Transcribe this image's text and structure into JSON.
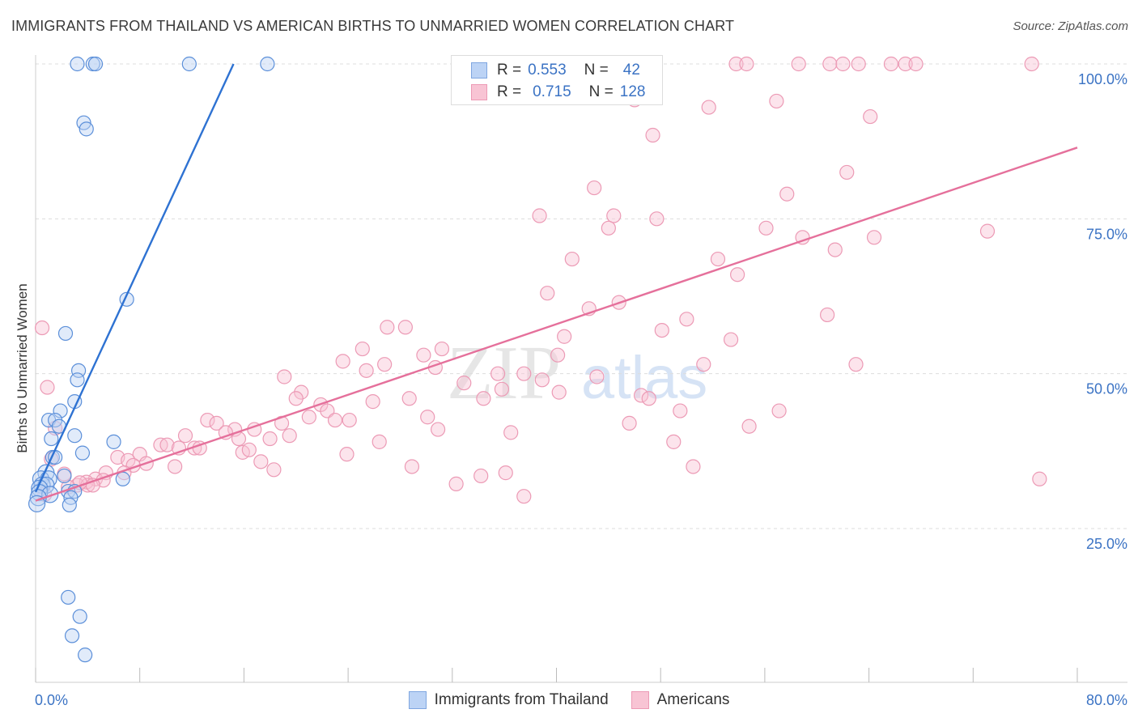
{
  "title": "IMMIGRANTS FROM THAILAND VS AMERICAN BIRTHS TO UNMARRIED WOMEN CORRELATION CHART",
  "source": "Source: ZipAtlas.com",
  "watermark": {
    "zip": "ZIP",
    "atlas": "atlas"
  },
  "legend": {
    "r_label": "R =",
    "n_label": "N =",
    "rows": [
      {
        "r": "0.553",
        "n": "42",
        "fill": "#bcd3f5",
        "stroke": "#7fa6e0"
      },
      {
        "r": "0.715",
        "n": "128",
        "fill": "#f8c4d4",
        "stroke": "#ec9ab5"
      }
    ]
  },
  "chart_data": {
    "type": "scatter",
    "title": "IMMIGRANTS FROM THAILAND VS AMERICAN BIRTHS TO UNMARRIED WOMEN CORRELATION CHART",
    "xlabel": "",
    "ylabel": "Births to Unmarried Women",
    "xlim": [
      0,
      80
    ],
    "ylim": [
      0,
      100
    ],
    "x_tick_labels": [
      {
        "value": 0,
        "label": "0.0%"
      },
      {
        "value": 80,
        "label": "80.0%"
      }
    ],
    "y_tick_labels": [
      {
        "value": 25,
        "label": "25.0%"
      },
      {
        "value": 50,
        "label": "50.0%"
      },
      {
        "value": 75,
        "label": "75.0%"
      },
      {
        "value": 100,
        "label": "100.0%"
      }
    ],
    "y_gridlines": [
      25,
      50,
      75,
      100
    ],
    "legend_position": "top-center",
    "series": [
      {
        "name": "Immigrants from Thailand",
        "color": "#5b8fd9",
        "fill": "#bcd3f5",
        "line_color": "#2e72d2",
        "trend": [
          [
            0.0,
            30.9
          ],
          [
            15.2,
            100.0
          ]
        ],
        "points": [
          [
            3.2,
            100
          ],
          [
            4.4,
            100
          ],
          [
            4.6,
            100
          ],
          [
            11.8,
            100
          ],
          [
            17.8,
            100
          ],
          [
            3.7,
            90.5
          ],
          [
            3.9,
            89.5
          ],
          [
            7.0,
            62.0
          ],
          [
            2.3,
            56.5
          ],
          [
            3.3,
            50.5
          ],
          [
            3.2,
            49.0
          ],
          [
            3.0,
            45.5
          ],
          [
            1.9,
            44.0
          ],
          [
            1.0,
            42.5
          ],
          [
            1.5,
            42.5
          ],
          [
            1.8,
            41.5
          ],
          [
            3.0,
            40.0
          ],
          [
            1.2,
            39.5
          ],
          [
            6.0,
            39.0
          ],
          [
            1.3,
            36.5
          ],
          [
            3.6,
            37.2
          ],
          [
            1.5,
            36.5
          ],
          [
            0.8,
            34.0
          ],
          [
            2.2,
            33.5
          ],
          [
            0.4,
            33.0
          ],
          [
            1.0,
            33.0
          ],
          [
            6.7,
            33.0
          ],
          [
            0.5,
            32.0
          ],
          [
            0.8,
            32.0
          ],
          [
            0.3,
            31.5
          ],
          [
            2.5,
            31.0
          ],
          [
            3.0,
            31.0
          ],
          [
            0.3,
            30.8
          ],
          [
            1.1,
            30.5
          ],
          [
            2.7,
            30.0
          ],
          [
            0.2,
            30.0
          ],
          [
            2.6,
            28.8
          ],
          [
            0.1,
            29.0
          ],
          [
            2.5,
            13.9
          ],
          [
            3.4,
            10.8
          ],
          [
            2.8,
            7.7
          ],
          [
            3.8,
            4.6
          ]
        ]
      },
      {
        "name": "Americans",
        "color": "#ec9ab5",
        "fill": "#f8c4d4",
        "line_color": "#e5709b",
        "trend": [
          [
            0.0,
            29.5
          ],
          [
            80.0,
            86.5
          ]
        ],
        "points": [
          [
            53.8,
            100
          ],
          [
            54.6,
            100
          ],
          [
            58.6,
            100
          ],
          [
            61.0,
            100
          ],
          [
            62.0,
            100
          ],
          [
            63.2,
            100
          ],
          [
            65.7,
            100
          ],
          [
            66.8,
            100
          ],
          [
            67.6,
            100
          ],
          [
            76.5,
            100
          ],
          [
            46.0,
            94.2
          ],
          [
            56.9,
            94.0
          ],
          [
            51.7,
            93.0
          ],
          [
            64.1,
            91.5
          ],
          [
            47.4,
            88.5
          ],
          [
            62.3,
            82.5
          ],
          [
            42.9,
            80.0
          ],
          [
            57.7,
            79.0
          ],
          [
            38.7,
            75.5
          ],
          [
            44.4,
            75.5
          ],
          [
            47.7,
            75.0
          ],
          [
            44.0,
            73.5
          ],
          [
            56.1,
            73.5
          ],
          [
            58.9,
            72.0
          ],
          [
            64.4,
            72.0
          ],
          [
            73.1,
            73.0
          ],
          [
            52.4,
            68.5
          ],
          [
            41.2,
            68.5
          ],
          [
            61.4,
            70.0
          ],
          [
            53.9,
            66.0
          ],
          [
            39.3,
            63.0
          ],
          [
            44.8,
            61.5
          ],
          [
            42.5,
            60.5
          ],
          [
            60.8,
            59.5
          ],
          [
            50.0,
            58.8
          ],
          [
            0.5,
            57.4
          ],
          [
            27.0,
            57.5
          ],
          [
            28.4,
            57.5
          ],
          [
            48.1,
            57.0
          ],
          [
            40.6,
            56.0
          ],
          [
            53.4,
            55.5
          ],
          [
            25.1,
            54.0
          ],
          [
            31.2,
            54.0
          ],
          [
            40.1,
            53.0
          ],
          [
            29.8,
            53.0
          ],
          [
            23.6,
            52.0
          ],
          [
            26.8,
            51.5
          ],
          [
            51.3,
            51.5
          ],
          [
            63.0,
            51.5
          ],
          [
            30.7,
            51.0
          ],
          [
            25.4,
            50.5
          ],
          [
            35.5,
            50.0
          ],
          [
            37.5,
            50.0
          ],
          [
            43.1,
            49.5
          ],
          [
            19.1,
            49.5
          ],
          [
            38.9,
            49.0
          ],
          [
            32.9,
            48.5
          ],
          [
            35.8,
            47.5
          ],
          [
            40.2,
            47.0
          ],
          [
            20.4,
            47.0
          ],
          [
            46.5,
            46.5
          ],
          [
            20.0,
            46.0
          ],
          [
            28.7,
            46.0
          ],
          [
            25.9,
            45.5
          ],
          [
            34.4,
            46.0
          ],
          [
            47.1,
            46.0
          ],
          [
            21.9,
            45.0
          ],
          [
            22.4,
            44.0
          ],
          [
            49.5,
            44.0
          ],
          [
            57.1,
            44.0
          ],
          [
            21.0,
            43.0
          ],
          [
            30.1,
            43.0
          ],
          [
            23.0,
            42.5
          ],
          [
            24.1,
            42.5
          ],
          [
            18.9,
            42.0
          ],
          [
            45.6,
            42.0
          ],
          [
            13.2,
            42.5
          ],
          [
            13.9,
            42.0
          ],
          [
            54.8,
            41.5
          ],
          [
            15.3,
            41.0
          ],
          [
            30.9,
            41.0
          ],
          [
            16.8,
            41.0
          ],
          [
            14.6,
            40.5
          ],
          [
            11.5,
            40.0
          ],
          [
            19.5,
            40.0
          ],
          [
            36.5,
            40.5
          ],
          [
            18.0,
            39.5
          ],
          [
            15.6,
            39.5
          ],
          [
            26.4,
            39.0
          ],
          [
            49.0,
            39.0
          ],
          [
            9.6,
            38.5
          ],
          [
            10.1,
            38.5
          ],
          [
            11.0,
            38.0
          ],
          [
            12.2,
            38.0
          ],
          [
            15.9,
            37.3
          ],
          [
            12.6,
            38.0
          ],
          [
            16.4,
            37.7
          ],
          [
            8.0,
            37.0
          ],
          [
            6.3,
            36.5
          ],
          [
            7.1,
            36.0
          ],
          [
            23.9,
            37.0
          ],
          [
            17.3,
            35.8
          ],
          [
            28.9,
            35.0
          ],
          [
            8.5,
            35.5
          ],
          [
            10.7,
            35.0
          ],
          [
            7.5,
            35.2
          ],
          [
            50.5,
            35.0
          ],
          [
            18.3,
            34.5
          ],
          [
            5.4,
            34.0
          ],
          [
            6.8,
            34.0
          ],
          [
            34.2,
            33.5
          ],
          [
            36.1,
            34.0
          ],
          [
            77.1,
            33.0
          ],
          [
            4.6,
            33.0
          ],
          [
            5.2,
            32.8
          ],
          [
            3.9,
            32.5
          ],
          [
            3.2,
            32.0
          ],
          [
            4.0,
            32.0
          ],
          [
            4.4,
            32.0
          ],
          [
            3.4,
            32.4
          ],
          [
            32.3,
            32.2
          ],
          [
            2.5,
            31.7
          ],
          [
            37.5,
            30.2
          ],
          [
            2.2,
            33.8
          ],
          [
            0.9,
            47.8
          ],
          [
            1.5,
            41.2
          ],
          [
            1.2,
            36.2
          ],
          [
            0.7,
            30.5
          ]
        ]
      }
    ]
  }
}
